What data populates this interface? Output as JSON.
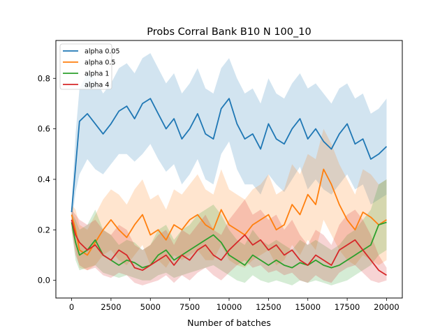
{
  "chart_data": {
    "type": "line",
    "title": "Probs Corral Bank B10 N 100_10",
    "xlabel": "Number of batches",
    "ylabel": "",
    "xlim": [
      -1000,
      21000
    ],
    "ylim": [
      -0.07,
      0.95
    ],
    "xticks": [
      0,
      2500,
      5000,
      7500,
      10000,
      12500,
      15000,
      17500,
      20000
    ],
    "xtick_labels": [
      "0",
      "2500",
      "5000",
      "7500",
      "10000",
      "12500",
      "15000",
      "17500",
      "20000"
    ],
    "yticks": [
      0.0,
      0.2,
      0.4,
      0.6,
      0.8
    ],
    "ytick_labels": [
      "0.0",
      "0.2",
      "0.4",
      "0.6",
      "0.8"
    ],
    "legend_position": "upper-left",
    "grid": false,
    "series": [
      {
        "name": "alpha 0.05",
        "color": "#1f77b4",
        "x": [
          0,
          250,
          500,
          1000,
          1500,
          2000,
          2500,
          3000,
          3500,
          4000,
          4500,
          5000,
          5500,
          6000,
          6500,
          7000,
          7500,
          8000,
          8500,
          9000,
          9500,
          10000,
          10500,
          11000,
          11500,
          12000,
          12500,
          13000,
          13500,
          14000,
          14500,
          15000,
          15500,
          16000,
          16500,
          17000,
          17500,
          18000,
          18500,
          19000,
          19500,
          20000
        ],
        "y": [
          0.27,
          0.45,
          0.63,
          0.66,
          0.62,
          0.58,
          0.62,
          0.67,
          0.69,
          0.64,
          0.7,
          0.72,
          0.66,
          0.6,
          0.64,
          0.56,
          0.6,
          0.66,
          0.58,
          0.56,
          0.68,
          0.72,
          0.62,
          0.56,
          0.58,
          0.52,
          0.62,
          0.56,
          0.54,
          0.6,
          0.64,
          0.56,
          0.6,
          0.55,
          0.52,
          0.58,
          0.62,
          0.54,
          0.56,
          0.48,
          0.5,
          0.53
        ],
        "y_low": [
          0.22,
          0.35,
          0.42,
          0.48,
          0.44,
          0.42,
          0.46,
          0.5,
          0.5,
          0.47,
          0.5,
          0.54,
          0.48,
          0.43,
          0.46,
          0.38,
          0.42,
          0.48,
          0.4,
          0.38,
          0.5,
          0.55,
          0.44,
          0.38,
          0.38,
          0.34,
          0.42,
          0.38,
          0.35,
          0.4,
          0.45,
          0.36,
          0.4,
          0.36,
          0.34,
          0.38,
          0.42,
          0.36,
          0.38,
          0.3,
          0.32,
          0.34
        ],
        "y_high": [
          0.3,
          0.58,
          0.76,
          0.82,
          0.8,
          0.74,
          0.78,
          0.84,
          0.86,
          0.82,
          0.88,
          0.9,
          0.84,
          0.78,
          0.82,
          0.74,
          0.78,
          0.84,
          0.76,
          0.74,
          0.84,
          0.88,
          0.8,
          0.74,
          0.76,
          0.7,
          0.8,
          0.74,
          0.72,
          0.78,
          0.82,
          0.76,
          0.78,
          0.74,
          0.7,
          0.76,
          0.78,
          0.72,
          0.74,
          0.66,
          0.68,
          0.72
        ]
      },
      {
        "name": "alpha 0.5",
        "color": "#ff7f0e",
        "x": [
          0,
          250,
          500,
          1000,
          1500,
          2000,
          2500,
          3000,
          3500,
          4000,
          4500,
          5000,
          5500,
          6000,
          6500,
          7000,
          7500,
          8000,
          8500,
          9000,
          9500,
          10000,
          10500,
          11000,
          11500,
          12000,
          12500,
          13000,
          13500,
          14000,
          14500,
          15000,
          15500,
          16000,
          16500,
          17000,
          17500,
          18000,
          18500,
          19000,
          19500,
          20000
        ],
        "y": [
          0.26,
          0.2,
          0.12,
          0.1,
          0.15,
          0.2,
          0.24,
          0.2,
          0.17,
          0.22,
          0.26,
          0.18,
          0.2,
          0.16,
          0.22,
          0.2,
          0.24,
          0.26,
          0.22,
          0.2,
          0.28,
          0.22,
          0.2,
          0.18,
          0.22,
          0.24,
          0.26,
          0.2,
          0.22,
          0.3,
          0.26,
          0.34,
          0.3,
          0.44,
          0.38,
          0.3,
          0.24,
          0.2,
          0.27,
          0.25,
          0.22,
          0.24
        ],
        "y_low": [
          0.22,
          0.12,
          0.05,
          0.04,
          0.06,
          0.1,
          0.12,
          0.08,
          0.06,
          0.1,
          0.14,
          0.06,
          0.08,
          0.05,
          0.1,
          0.08,
          0.1,
          0.12,
          0.08,
          0.08,
          0.14,
          0.08,
          0.06,
          0.05,
          0.08,
          0.1,
          0.12,
          0.06,
          0.08,
          0.14,
          0.1,
          0.16,
          0.12,
          0.24,
          0.18,
          0.12,
          0.08,
          0.06,
          0.1,
          0.08,
          0.06,
          0.08
        ],
        "y_high": [
          0.3,
          0.28,
          0.22,
          0.2,
          0.26,
          0.32,
          0.36,
          0.34,
          0.3,
          0.36,
          0.4,
          0.32,
          0.34,
          0.28,
          0.36,
          0.34,
          0.38,
          0.42,
          0.36,
          0.34,
          0.44,
          0.36,
          0.34,
          0.32,
          0.36,
          0.38,
          0.42,
          0.34,
          0.36,
          0.46,
          0.42,
          0.5,
          0.48,
          0.6,
          0.54,
          0.46,
          0.4,
          0.34,
          0.44,
          0.42,
          0.38,
          0.4
        ]
      },
      {
        "name": "alpha 1",
        "color": "#2ca02c",
        "x": [
          0,
          250,
          500,
          1000,
          1500,
          2000,
          2500,
          3000,
          3500,
          4000,
          4500,
          5000,
          5500,
          6000,
          6500,
          7000,
          7500,
          8000,
          8500,
          9000,
          9500,
          10000,
          10500,
          11000,
          11500,
          12000,
          12500,
          13000,
          13500,
          14000,
          14500,
          15000,
          15500,
          16000,
          16500,
          17000,
          17500,
          18000,
          18500,
          19000,
          19500,
          20000
        ],
        "y": [
          0.23,
          0.15,
          0.1,
          0.12,
          0.16,
          0.1,
          0.08,
          0.06,
          0.08,
          0.07,
          0.05,
          0.06,
          0.1,
          0.12,
          0.08,
          0.1,
          0.12,
          0.14,
          0.16,
          0.18,
          0.15,
          0.1,
          0.08,
          0.06,
          0.1,
          0.08,
          0.06,
          0.08,
          0.06,
          0.05,
          0.07,
          0.06,
          0.08,
          0.06,
          0.05,
          0.06,
          0.08,
          0.1,
          0.12,
          0.14,
          0.22,
          0.23
        ],
        "y_low": [
          0.2,
          0.08,
          0.04,
          0.05,
          0.06,
          0.03,
          0.02,
          0.01,
          0.02,
          0.01,
          0.0,
          0.0,
          0.02,
          0.03,
          0.01,
          0.02,
          0.03,
          0.04,
          0.05,
          0.06,
          0.04,
          0.02,
          0.0,
          -0.01,
          0.02,
          0.0,
          -0.01,
          0.0,
          -0.01,
          -0.02,
          0.0,
          -0.01,
          0.0,
          -0.01,
          -0.02,
          -0.01,
          0.0,
          0.02,
          0.04,
          0.06,
          0.1,
          0.12
        ],
        "y_high": [
          0.27,
          0.24,
          0.2,
          0.22,
          0.28,
          0.2,
          0.18,
          0.14,
          0.16,
          0.15,
          0.12,
          0.14,
          0.2,
          0.22,
          0.16,
          0.2,
          0.22,
          0.26,
          0.28,
          0.3,
          0.26,
          0.2,
          0.16,
          0.14,
          0.2,
          0.16,
          0.14,
          0.16,
          0.14,
          0.12,
          0.16,
          0.14,
          0.16,
          0.14,
          0.12,
          0.14,
          0.18,
          0.2,
          0.24,
          0.28,
          0.38,
          0.4
        ]
      },
      {
        "name": "alpha 4",
        "color": "#d62728",
        "x": [
          0,
          250,
          500,
          1000,
          1500,
          2000,
          2500,
          3000,
          3500,
          4000,
          4500,
          5000,
          5500,
          6000,
          6500,
          7000,
          7500,
          8000,
          8500,
          9000,
          9500,
          10000,
          10500,
          11000,
          11500,
          12000,
          12500,
          13000,
          13500,
          14000,
          14500,
          15000,
          15500,
          16000,
          16500,
          17000,
          17500,
          18000,
          18500,
          19000,
          19500,
          20000
        ],
        "y": [
          0.24,
          0.18,
          0.15,
          0.12,
          0.14,
          0.1,
          0.08,
          0.12,
          0.1,
          0.05,
          0.04,
          0.06,
          0.08,
          0.1,
          0.06,
          0.1,
          0.08,
          0.12,
          0.14,
          0.1,
          0.08,
          0.12,
          0.15,
          0.18,
          0.14,
          0.16,
          0.12,
          0.14,
          0.1,
          0.12,
          0.08,
          0.06,
          0.1,
          0.08,
          0.06,
          0.12,
          0.14,
          0.16,
          0.12,
          0.08,
          0.04,
          0.02
        ],
        "y_low": [
          0.2,
          0.1,
          0.06,
          0.04,
          0.05,
          0.02,
          0.01,
          0.03,
          0.02,
          -0.01,
          -0.02,
          -0.01,
          0.0,
          0.02,
          -0.01,
          0.02,
          0.0,
          0.03,
          0.05,
          0.02,
          0.0,
          0.03,
          0.06,
          0.08,
          0.05,
          0.06,
          0.03,
          0.04,
          0.02,
          0.03,
          0.0,
          -0.01,
          0.02,
          0.0,
          -0.01,
          0.03,
          0.05,
          0.06,
          0.03,
          0.0,
          -0.01,
          0.0
        ],
        "y_high": [
          0.28,
          0.26,
          0.24,
          0.22,
          0.24,
          0.2,
          0.18,
          0.22,
          0.2,
          0.14,
          0.12,
          0.14,
          0.18,
          0.2,
          0.14,
          0.2,
          0.18,
          0.22,
          0.26,
          0.2,
          0.18,
          0.24,
          0.28,
          0.32,
          0.26,
          0.28,
          0.24,
          0.26,
          0.2,
          0.24,
          0.18,
          0.14,
          0.2,
          0.18,
          0.14,
          0.22,
          0.26,
          0.28,
          0.24,
          0.18,
          0.1,
          0.05
        ]
      }
    ]
  }
}
